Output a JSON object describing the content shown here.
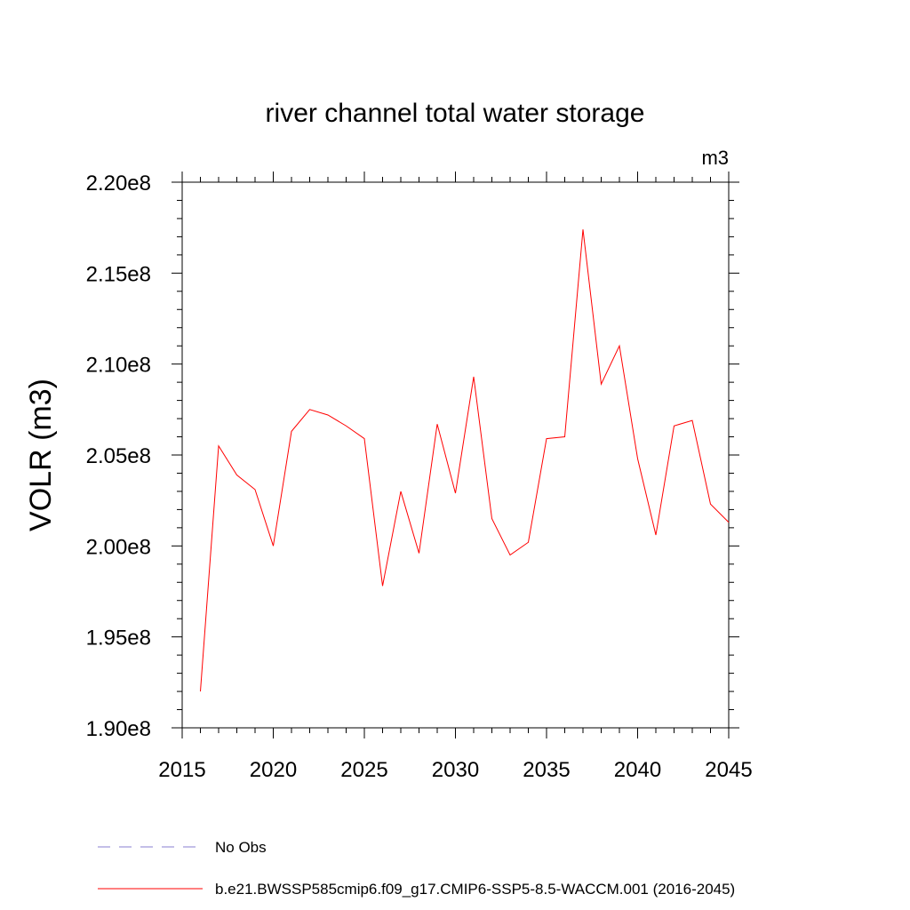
{
  "chart_data": {
    "type": "line",
    "title": "river channel total water storage",
    "units": "m3",
    "ylabel": "VOLR  (m3)",
    "xlabel": "",
    "xlim": [
      2015,
      2045
    ],
    "ylim": [
      190000000,
      220000000
    ],
    "x_ticks": [
      {
        "value": 2015,
        "label": "2015"
      },
      {
        "value": 2020,
        "label": "2020"
      },
      {
        "value": 2025,
        "label": "2025"
      },
      {
        "value": 2030,
        "label": "2030"
      },
      {
        "value": 2035,
        "label": "2035"
      },
      {
        "value": 2040,
        "label": "2040"
      },
      {
        "value": 2045,
        "label": "2045"
      }
    ],
    "y_ticks": [
      {
        "value": 190000000,
        "label": "1.90e8"
      },
      {
        "value": 195000000,
        "label": "1.95e8"
      },
      {
        "value": 200000000,
        "label": "2.00e8"
      },
      {
        "value": 205000000,
        "label": "2.05e8"
      },
      {
        "value": 210000000,
        "label": "2.10e8"
      },
      {
        "value": 215000000,
        "label": "2.15e8"
      },
      {
        "value": 220000000,
        "label": "2.20e8"
      }
    ],
    "grid": false,
    "series": [
      {
        "name": "No Obs",
        "color": "#8a7fd0",
        "dash": "dashed",
        "x": [],
        "values": []
      },
      {
        "name": "b.e21.BWSSP585cmip6.f09_g17.CMIP6-SSP5-8.5-WACCM.001 (2016-2045)",
        "color": "#ff0000",
        "dash": "solid",
        "x": [
          2016,
          2017,
          2018,
          2019,
          2020,
          2021,
          2022,
          2023,
          2024,
          2025,
          2026,
          2027,
          2028,
          2029,
          2030,
          2031,
          2032,
          2033,
          2034,
          2035,
          2036,
          2037,
          2038,
          2039,
          2040,
          2041,
          2042,
          2043,
          2044,
          2045
        ],
        "values": [
          192000000,
          205500000,
          203900000,
          203100000,
          200000000,
          206300000,
          207500000,
          207200000,
          206600000,
          205900000,
          197800000,
          203000000,
          199600000,
          206700000,
          202900000,
          209300000,
          201500000,
          199500000,
          200200000,
          205900000,
          206000000,
          217400000,
          208900000,
          211000000,
          204800000,
          200600000,
          206600000,
          206900000,
          202300000,
          201300000
        ]
      }
    ],
    "legend": {
      "placement": "bottom",
      "entries": [
        "No Obs",
        "b.e21.BWSSP585cmip6.f09_g17.CMIP6-SSP5-8.5-WACCM.001 (2016-2045)"
      ]
    }
  }
}
